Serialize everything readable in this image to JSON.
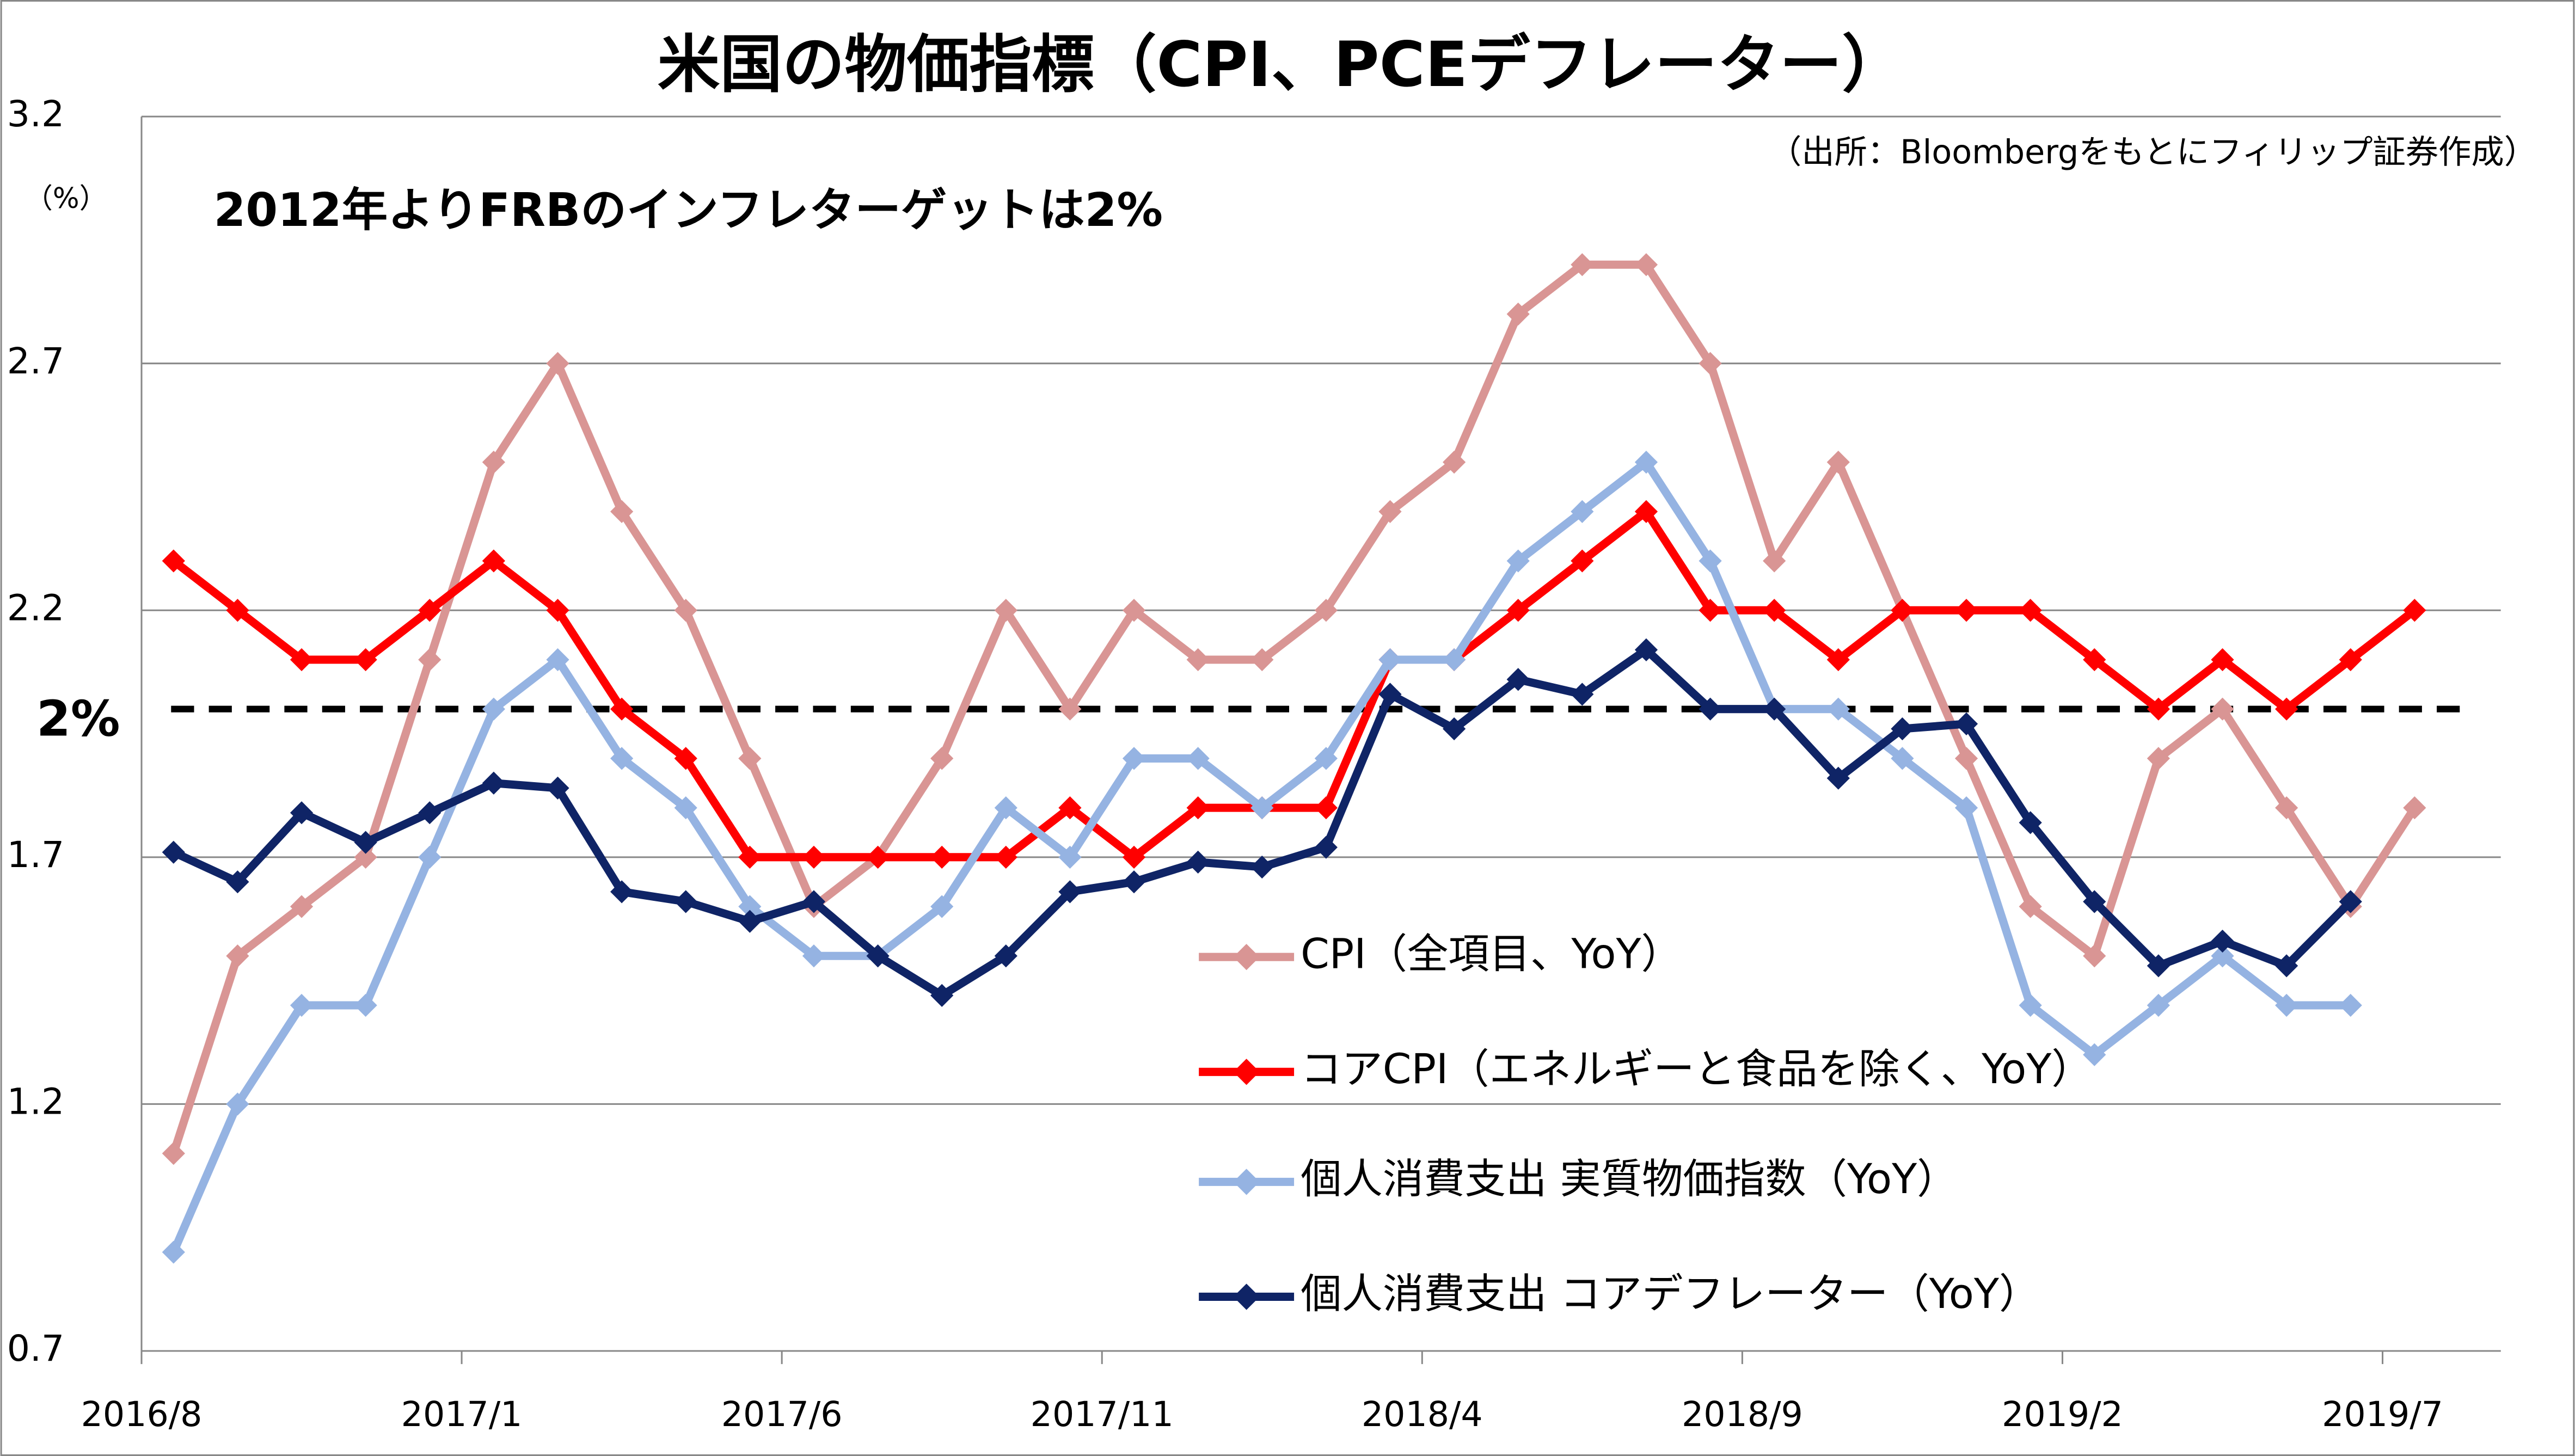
{
  "chart_data": {
    "type": "line",
    "title": "米国の物価指標（CPI、PCEデフレーター）",
    "subtitle": "2012年よりFRBのインフレターゲットは2%",
    "source": "（出所：Bloombergをもとにフィリップ証券作成）",
    "y_unit": "（%）",
    "categories": [
      "2016/8",
      null,
      null,
      null,
      null,
      "2017/1",
      null,
      null,
      null,
      null,
      "2017/6",
      null,
      null,
      null,
      null,
      "2017/11",
      null,
      null,
      null,
      null,
      "2018/4",
      null,
      null,
      null,
      null,
      "2018/9",
      null,
      null,
      null,
      null,
      "2019/2",
      null,
      null,
      null,
      null,
      "2019/7"
    ],
    "series": [
      {
        "name": "CPI（全項目、YoY）",
        "color": "#d99594",
        "values": [
          1.1,
          1.5,
          1.6,
          1.7,
          2.1,
          2.5,
          2.7,
          2.4,
          2.2,
          1.9,
          1.6,
          1.7,
          1.9,
          2.2,
          2.0,
          2.2,
          2.1,
          2.1,
          2.2,
          2.4,
          2.5,
          2.8,
          2.9,
          2.9,
          2.7,
          2.3,
          2.5,
          2.2,
          1.9,
          1.6,
          1.5,
          1.9,
          2.0,
          1.8,
          1.6,
          1.8
        ]
      },
      {
        "name": "コアCPI（エネルギーと食品を除く、YoY）",
        "color": "#ff0000",
        "values": [
          2.3,
          2.2,
          2.1,
          2.1,
          2.2,
          2.3,
          2.2,
          2.0,
          1.9,
          1.7,
          1.7,
          1.7,
          1.7,
          1.7,
          1.8,
          1.7,
          1.8,
          1.8,
          1.8,
          2.1,
          2.1,
          2.2,
          2.3,
          2.4,
          2.2,
          2.2,
          2.1,
          2.2,
          2.2,
          2.2,
          2.1,
          2.0,
          2.1,
          2.0,
          2.1,
          2.2
        ]
      },
      {
        "name": "個人消費支出 実質物価指数（YoY）",
        "color": "#95b3e2",
        "values": [
          0.9,
          1.2,
          1.4,
          1.4,
          1.7,
          2.0,
          2.1,
          1.9,
          1.8,
          1.6,
          1.5,
          1.5,
          1.6,
          1.8,
          1.7,
          1.9,
          1.9,
          1.8,
          1.9,
          2.1,
          2.1,
          2.3,
          2.4,
          2.5,
          2.3,
          2.0,
          2.0,
          1.9,
          1.8,
          1.4,
          1.3,
          1.4,
          1.5,
          1.4,
          1.4,
          null
        ]
      },
      {
        "name": "個人消費支出 コアデフレーター（YoY）",
        "color": "#0f2466",
        "values": [
          1.71,
          1.65,
          1.79,
          1.73,
          1.79,
          1.85,
          1.84,
          1.63,
          1.61,
          1.57,
          1.61,
          1.5,
          1.42,
          1.5,
          1.63,
          1.65,
          1.69,
          1.68,
          1.72,
          2.03,
          1.96,
          2.06,
          2.03,
          2.12,
          2.0,
          2.0,
          1.86,
          1.96,
          1.97,
          1.77,
          1.61,
          1.48,
          1.53,
          1.48,
          1.61,
          null
        ]
      }
    ],
    "reference_line": {
      "value": 2,
      "label": "2%"
    },
    "ylim": [
      0.7,
      3.2
    ],
    "yticks": [
      0.7,
      1.2,
      1.7,
      2.2,
      2.7,
      3.2
    ],
    "grid": true
  }
}
